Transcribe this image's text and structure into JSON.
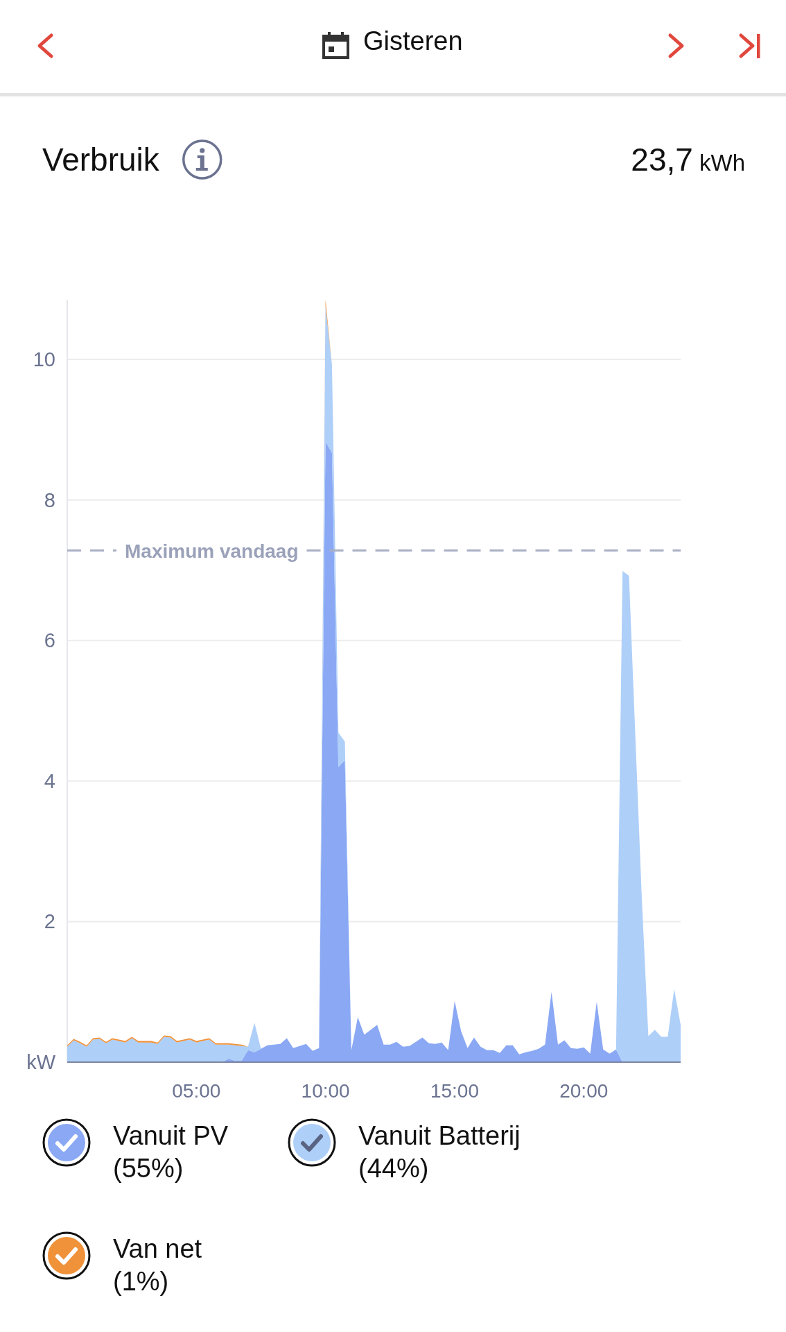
{
  "chart_data": {
    "type": "area",
    "title": "Verbruik",
    "subtitle": "Gisteren",
    "annotations": [
      "23,7 kWh"
    ],
    "x": [
      0,
      0.25,
      0.5,
      0.75,
      1,
      1.25,
      1.5,
      1.75,
      2,
      2.25,
      2.5,
      2.75,
      3,
      3.25,
      3.5,
      3.75,
      4,
      4.25,
      4.5,
      4.75,
      5,
      5.25,
      5.5,
      5.75,
      6,
      6.25,
      6.5,
      6.75,
      7,
      7.25,
      7.5,
      7.75,
      8,
      8.25,
      8.5,
      8.75,
      9,
      9.25,
      9.5,
      9.75,
      10,
      10.25,
      10.5,
      10.75,
      11,
      11.25,
      11.5,
      11.75,
      12,
      12.25,
      12.5,
      12.75,
      13,
      13.25,
      13.5,
      13.75,
      14,
      14.25,
      14.5,
      14.75,
      15,
      15.25,
      15.5,
      15.75,
      16,
      16.25,
      16.5,
      16.75,
      17,
      17.25,
      17.5,
      17.75,
      18,
      18.25,
      18.5,
      18.75,
      19,
      19.25,
      19.5,
      19.75,
      20,
      20.25,
      20.5,
      20.75,
      21,
      21.25,
      21.5,
      21.75,
      22,
      22.25,
      22.5,
      22.75,
      23,
      23.25,
      23.5,
      23.75
    ],
    "series": [
      {
        "name": "Vanuit PV (55%)",
        "color": "#8aa8f4",
        "values": [
          0,
          0,
          0,
          0,
          0,
          0,
          0,
          0,
          0,
          0,
          0,
          0,
          0,
          0,
          0,
          0,
          0,
          0,
          0,
          0,
          0,
          0,
          0,
          0,
          0,
          0.05,
          0.02,
          0.02,
          0.17,
          0.14,
          0.19,
          0.24,
          0.25,
          0.26,
          0.34,
          0.2,
          0.23,
          0.26,
          0.16,
          0.2,
          8.83,
          8.67,
          4.2,
          4.3,
          0.17,
          0.64,
          0.39,
          0.46,
          0.53,
          0.25,
          0.25,
          0.29,
          0.22,
          0.23,
          0.29,
          0.35,
          0.27,
          0.26,
          0.28,
          0.17,
          0.87,
          0.44,
          0.2,
          0.35,
          0.22,
          0.17,
          0.17,
          0.13,
          0.24,
          0.24,
          0.11,
          0.14,
          0.16,
          0.19,
          0.25,
          1.0,
          0.25,
          0.31,
          0.2,
          0.19,
          0.21,
          0.12,
          0.86,
          0.18,
          0.12,
          0.18,
          0,
          0,
          0,
          0,
          0,
          0,
          0,
          0,
          0,
          0
        ]
      },
      {
        "name": "Vanuit Batterij (44%)",
        "color": "#aecff8",
        "values": [
          0.22,
          0.31,
          0.27,
          0.22,
          0.32,
          0.33,
          0.27,
          0.32,
          0.3,
          0.28,
          0.34,
          0.28,
          0.28,
          0.28,
          0.26,
          0.36,
          0.35,
          0.28,
          0.3,
          0.32,
          0.28,
          0.3,
          0.32,
          0.25,
          0.25,
          0.2,
          0.22,
          0.21,
          0.05,
          0.42,
          0,
          0,
          0,
          0,
          0,
          0,
          0,
          0,
          0,
          0,
          1.93,
          1.25,
          0.49,
          0.26,
          0,
          0,
          0,
          0,
          0,
          0,
          0,
          0,
          0,
          0,
          0,
          0,
          0,
          0,
          0,
          0,
          0,
          0,
          0,
          0,
          0,
          0,
          0,
          0,
          0,
          0,
          0,
          0,
          0,
          0,
          0,
          0,
          0,
          0,
          0,
          0,
          0,
          0,
          0,
          0,
          0,
          0,
          6.99,
          6.92,
          4.6,
          2.3,
          0.37,
          0.46,
          0.36,
          0.36,
          1.04,
          0.53
        ]
      },
      {
        "name": "Van net (1%)",
        "color": "#f0923a",
        "values": [
          0.02,
          0.02,
          0.02,
          0.02,
          0.02,
          0.02,
          0.02,
          0.02,
          0.02,
          0.02,
          0.02,
          0.02,
          0.02,
          0.02,
          0.02,
          0.02,
          0.02,
          0.02,
          0.02,
          0.02,
          0.02,
          0.02,
          0.02,
          0.02,
          0.02,
          0.02,
          0.02,
          0.02,
          0,
          0,
          0,
          0,
          0,
          0,
          0,
          0,
          0,
          0,
          0,
          0,
          0.09,
          0,
          0,
          0,
          0,
          0,
          0,
          0,
          0,
          0,
          0,
          0,
          0,
          0,
          0,
          0,
          0,
          0,
          0,
          0,
          0,
          0,
          0,
          0,
          0,
          0,
          0,
          0,
          0,
          0,
          0,
          0,
          0,
          0,
          0,
          0,
          0,
          0,
          0,
          0,
          0,
          0,
          0,
          0,
          0,
          0,
          0,
          0,
          0,
          0,
          0,
          0,
          0,
          0,
          0,
          0
        ]
      }
    ],
    "stacked": true,
    "xlim": [
      0,
      23.75
    ],
    "ylim": [
      0,
      10.85
    ],
    "xticks": [
      {
        "value": 5,
        "label": "05:00"
      },
      {
        "value": 10,
        "label": "10:00"
      },
      {
        "value": 15,
        "label": "15:00"
      },
      {
        "value": 20,
        "label": "20:00"
      }
    ],
    "yticks": [
      {
        "value": 0,
        "label": "kW"
      },
      2,
      4,
      6,
      8,
      10
    ],
    "grid": "y",
    "legend": "bottom",
    "ref_lines": [
      {
        "axis": "y",
        "value": 7.28,
        "label": "Maximum vandaag",
        "color": "#a9afc4",
        "line_style": "dashed"
      }
    ]
  }
}
